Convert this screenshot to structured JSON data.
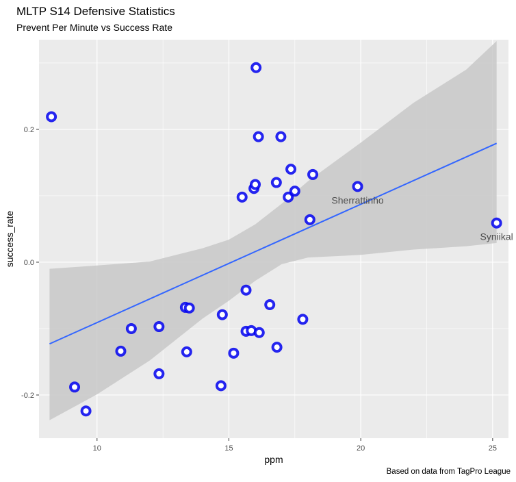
{
  "header": {
    "title": "MLTP S14 Defensive Statistics",
    "subtitle": "Prevent Per Minute vs Success Rate"
  },
  "caption": "Based on data from TagPro League",
  "colors": {
    "panel_background": "#ebebeb",
    "grid_major": "#ffffff",
    "point_stroke": "#0000ee",
    "point_fill": "#ffffff",
    "regression_line": "#3366ff",
    "confidence_band": "#c8c8c8"
  },
  "chart_data": {
    "type": "scatter",
    "title": "MLTP S14 Defensive Statistics",
    "subtitle": "Prevent Per Minute vs Success Rate",
    "xlabel": "ppm",
    "ylabel": "success_rate",
    "xlim": [
      7.8,
      25.6
    ],
    "ylim": [
      -0.265,
      0.335
    ],
    "x_ticks": [
      10,
      15,
      20,
      25
    ],
    "x_tick_labels": [
      "10",
      "15",
      "20",
      "25"
    ],
    "y_ticks": [
      -0.2,
      0.0,
      0.2
    ],
    "y_tick_labels": [
      "-0.2",
      "0.0",
      "0.2"
    ],
    "grid": true,
    "legend": "none",
    "points": [
      {
        "x": 8.27,
        "y": 0.219,
        "label": ""
      },
      {
        "x": 9.15,
        "y": -0.188,
        "label": ""
      },
      {
        "x": 9.58,
        "y": -0.224,
        "label": ""
      },
      {
        "x": 10.9,
        "y": -0.134,
        "label": ""
      },
      {
        "x": 11.3,
        "y": -0.1,
        "label": ""
      },
      {
        "x": 12.35,
        "y": -0.097,
        "label": ""
      },
      {
        "x": 12.35,
        "y": -0.168,
        "label": ""
      },
      {
        "x": 13.35,
        "y": -0.068,
        "label": ""
      },
      {
        "x": 13.5,
        "y": -0.069,
        "label": ""
      },
      {
        "x": 13.4,
        "y": -0.135,
        "label": ""
      },
      {
        "x": 14.7,
        "y": -0.186,
        "label": ""
      },
      {
        "x": 14.75,
        "y": -0.079,
        "label": ""
      },
      {
        "x": 15.18,
        "y": -0.137,
        "label": ""
      },
      {
        "x": 15.5,
        "y": 0.098,
        "label": ""
      },
      {
        "x": 15.65,
        "y": -0.042,
        "label": ""
      },
      {
        "x": 15.65,
        "y": -0.104,
        "label": ""
      },
      {
        "x": 15.85,
        "y": -0.103,
        "label": ""
      },
      {
        "x": 15.95,
        "y": 0.111,
        "label": ""
      },
      {
        "x": 16.0,
        "y": 0.117,
        "label": ""
      },
      {
        "x": 16.03,
        "y": 0.293,
        "label": ""
      },
      {
        "x": 16.12,
        "y": 0.189,
        "label": ""
      },
      {
        "x": 16.15,
        "y": -0.106,
        "label": ""
      },
      {
        "x": 16.55,
        "y": -0.064,
        "label": ""
      },
      {
        "x": 16.8,
        "y": 0.12,
        "label": ""
      },
      {
        "x": 16.82,
        "y": -0.128,
        "label": ""
      },
      {
        "x": 16.97,
        "y": 0.189,
        "label": ""
      },
      {
        "x": 17.25,
        "y": 0.098,
        "label": ""
      },
      {
        "x": 17.35,
        "y": 0.14,
        "label": ""
      },
      {
        "x": 17.5,
        "y": 0.107,
        "label": ""
      },
      {
        "x": 17.8,
        "y": -0.086,
        "label": ""
      },
      {
        "x": 18.07,
        "y": 0.064,
        "label": ""
      },
      {
        "x": 18.18,
        "y": 0.132,
        "label": ""
      },
      {
        "x": 19.88,
        "y": 0.114,
        "label": "Sherrattinho"
      },
      {
        "x": 25.15,
        "y": 0.059,
        "label": "Syniikal"
      }
    ],
    "regression": {
      "x": [
        8.2,
        25.15
      ],
      "y": [
        -0.123,
        0.179
      ]
    },
    "confidence_band": {
      "x": [
        8.2,
        10,
        12,
        14,
        15,
        16,
        17,
        18,
        20,
        22,
        24,
        25.15
      ],
      "upper": [
        -0.01,
        -0.005,
        0.001,
        0.021,
        0.034,
        0.057,
        0.088,
        0.122,
        0.18,
        0.24,
        0.29,
        0.333
      ],
      "lower": [
        -0.238,
        -0.199,
        -0.148,
        -0.085,
        -0.058,
        -0.028,
        -0.003,
        0.007,
        0.011,
        0.019,
        0.024,
        0.029
      ]
    }
  }
}
